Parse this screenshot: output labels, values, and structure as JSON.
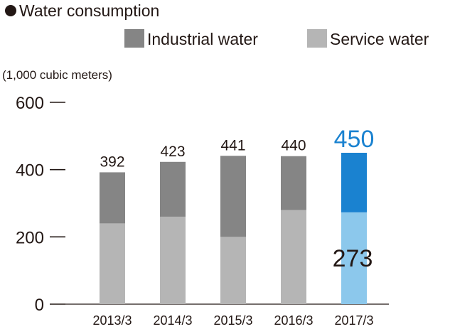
{
  "chart_data": {
    "type": "bar",
    "stacked": true,
    "title": "Water consumption",
    "unit_label": "(1,000 cubic meters)",
    "categories": [
      "2013/3",
      "2014/3",
      "2015/3",
      "2016/3",
      "2017/3"
    ],
    "series": [
      {
        "name": "Service water",
        "values": [
          240,
          260,
          200,
          280,
          273
        ]
      },
      {
        "name": "Industrial water",
        "values": [
          152,
          163,
          241,
          160,
          177
        ]
      }
    ],
    "totals": [
      392,
      423,
      441,
      440,
      450
    ],
    "data_labels": [
      "392",
      "423",
      "441",
      "440",
      "450"
    ],
    "highlight_inner_label": "273",
    "highlight_index": 4,
    "yticks": [
      0,
      200,
      400,
      600
    ],
    "ylim": [
      0,
      600
    ],
    "legend_position": "top-right",
    "grid": false,
    "colors": {
      "industrial": "#858585",
      "service": "#b5b5b5",
      "industrial_highlight": "#1a82d0",
      "service_highlight": "#8cc8ec",
      "highlight_text": "#1a82d0",
      "text": "#231815"
    }
  }
}
